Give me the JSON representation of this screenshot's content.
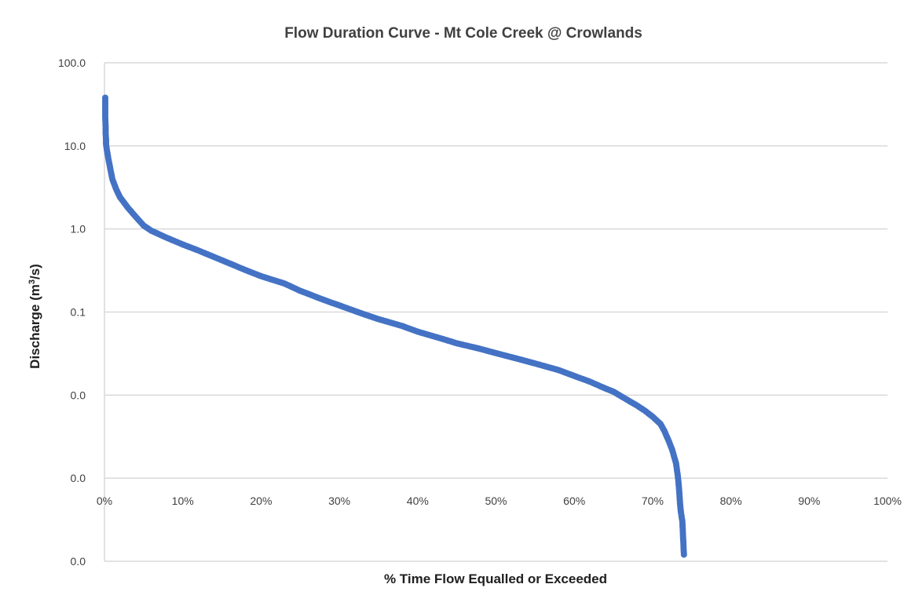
{
  "chart_data": {
    "type": "scatter",
    "title": "Flow Duration Curve - Mt Cole Creek @ Crowlands",
    "xlabel": "% Time Flow Equalled or Exceeded",
    "ylabel_main": "Discharge (m",
    "ylabel_sup": "3",
    "ylabel_end": "/s)",
    "y_scale": "log",
    "ylim": [
      0.0001,
      100
    ],
    "xlim": [
      0,
      100
    ],
    "grid": true,
    "legend": "none",
    "marker_color": "#4472c4",
    "x_tick_labels": [
      "0%",
      "10%",
      "20%",
      "30%",
      "40%",
      "50%",
      "60%",
      "70%",
      "80%",
      "90%",
      "100%"
    ],
    "y_tick_labels": [
      "100.0",
      "10.0",
      "1.0",
      "0.1",
      "0.0",
      "0.0",
      "0.0"
    ],
    "y_tick_values": [
      100,
      10,
      1,
      0.1,
      0.01,
      0.001,
      0.0001
    ],
    "series": [
      {
        "points": [
          [
            0.1,
            38
          ],
          [
            0.1,
            27
          ],
          [
            0.1,
            22
          ],
          [
            0.15,
            17
          ],
          [
            0.15,
            14
          ],
          [
            0.2,
            12
          ],
          [
            0.2,
            10.5
          ],
          [
            0.3,
            9
          ],
          [
            0.5,
            7
          ],
          [
            0.8,
            5
          ],
          [
            1,
            4
          ],
          [
            1.5,
            3
          ],
          [
            2,
            2.4
          ],
          [
            3,
            1.8
          ],
          [
            4,
            1.4
          ],
          [
            5,
            1.1
          ],
          [
            6,
            0.95
          ],
          [
            8,
            0.78
          ],
          [
            10,
            0.65
          ],
          [
            12,
            0.55
          ],
          [
            15,
            0.42
          ],
          [
            18,
            0.32
          ],
          [
            20,
            0.27
          ],
          [
            23,
            0.22
          ],
          [
            25,
            0.18
          ],
          [
            28,
            0.14
          ],
          [
            30,
            0.12
          ],
          [
            33,
            0.095
          ],
          [
            35,
            0.082
          ],
          [
            38,
            0.068
          ],
          [
            40,
            0.058
          ],
          [
            43,
            0.048
          ],
          [
            45,
            0.042
          ],
          [
            48,
            0.036
          ],
          [
            50,
            0.032
          ],
          [
            53,
            0.027
          ],
          [
            55,
            0.024
          ],
          [
            58,
            0.02
          ],
          [
            60,
            0.017
          ],
          [
            62,
            0.0145
          ],
          [
            64,
            0.012
          ],
          [
            65,
            0.011
          ],
          [
            67,
            0.0085
          ],
          [
            68,
            0.0075
          ],
          [
            69,
            0.0065
          ],
          [
            70,
            0.0055
          ],
          [
            71,
            0.0045
          ],
          [
            71.5,
            0.0037
          ],
          [
            72,
            0.0029
          ],
          [
            72.5,
            0.0022
          ],
          [
            73,
            0.0015
          ],
          [
            73.2,
            0.0011
          ],
          [
            73.3,
            0.0009
          ],
          [
            73.4,
            0.0007
          ],
          [
            73.5,
            0.0005
          ],
          [
            73.6,
            0.0004
          ],
          [
            73.8,
            0.0003
          ],
          [
            74,
            0.00012
          ]
        ]
      }
    ]
  }
}
